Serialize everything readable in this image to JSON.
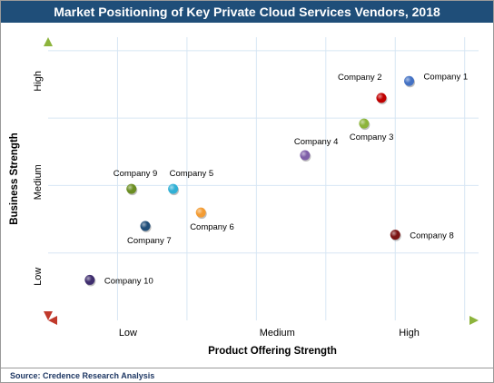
{
  "chart_data": {
    "type": "scatter",
    "title": "Market Positioning of Key Private Cloud Services Vendors, 2018",
    "xlabel": "Product Offering Strength",
    "ylabel": "Business Strength",
    "xlim": [
      0,
      6.2
    ],
    "ylim": [
      0,
      4.2
    ],
    "x_tick_labels": [
      "Low",
      "Medium",
      "High"
    ],
    "y_tick_labels": [
      "Low",
      "Medium",
      "High"
    ],
    "grid": true,
    "points": [
      {
        "label": "Company 1",
        "x": 5.2,
        "y": 3.55,
        "color": "#4472c4"
      },
      {
        "label": "Company 2",
        "x": 4.8,
        "y": 3.3,
        "color": "#c00000"
      },
      {
        "label": "Company 3",
        "x": 4.55,
        "y": 2.92,
        "color": "#8db43c"
      },
      {
        "label": "Company 4",
        "x": 3.7,
        "y": 2.45,
        "color": "#7f5fa8"
      },
      {
        "label": "Company 5",
        "x": 1.8,
        "y": 1.95,
        "color": "#31b0d5"
      },
      {
        "label": "Company 6",
        "x": 2.2,
        "y": 1.6,
        "color": "#f39c34"
      },
      {
        "label": "Company 7",
        "x": 1.4,
        "y": 1.4,
        "color": "#1f4e79"
      },
      {
        "label": "Company 8",
        "x": 5.0,
        "y": 1.27,
        "color": "#7b1414"
      },
      {
        "label": "Company 9",
        "x": 1.2,
        "y": 1.95,
        "color": "#6b8e23"
      },
      {
        "label": "Company 10",
        "x": 0.6,
        "y": 0.6,
        "color": "#3f2e6e"
      }
    ]
  },
  "source": "Source: Credence Research Analysis"
}
